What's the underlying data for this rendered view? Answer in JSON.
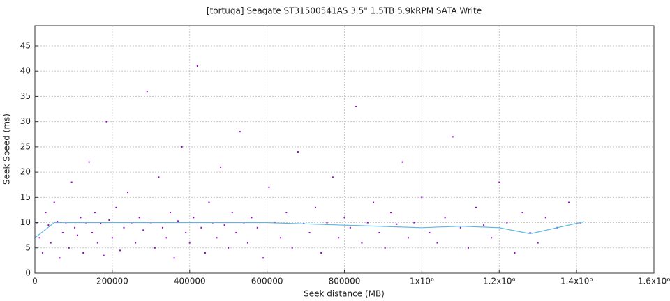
{
  "chart_data": {
    "type": "scatter",
    "title": "[tortuga] Seagate ST31500541AS 3.5\" 1.5TB 5.9kRPM SATA Write",
    "x_label": "Seek distance (MB)",
    "y_label": "Seek Speed (ms)",
    "xlim": [
      0,
      1600000
    ],
    "ylim": [
      0,
      49
    ],
    "xticks": [
      0,
      200000,
      400000,
      600000,
      800000,
      {
        "value": 1000000,
        "label": "1x10⁶"
      },
      {
        "value": 1200000,
        "label": "1.2x10⁶"
      },
      {
        "value": 1400000,
        "label": "1.4x10⁶"
      },
      {
        "value": 1600000,
        "label": "1.6x10⁶"
      }
    ],
    "yticks": [
      0,
      5,
      10,
      15,
      20,
      25,
      30,
      35,
      40,
      45
    ],
    "grid": true,
    "series": [
      {
        "type": "scatter",
        "color": "#9400d3",
        "x": [
          5000,
          12000,
          20000,
          28000,
          35000,
          41000,
          50000,
          58000,
          64000,
          72000,
          80000,
          88000,
          95000,
          103000,
          110000,
          118000,
          125000,
          132000,
          140000,
          148000,
          155000,
          162000,
          170000,
          178000,
          185000,
          192000,
          200000,
          210000,
          220000,
          230000,
          240000,
          250000,
          260000,
          270000,
          280000,
          290000,
          300000,
          310000,
          320000,
          330000,
          340000,
          350000,
          360000,
          370000,
          380000,
          390000,
          400000,
          410000,
          420000,
          430000,
          440000,
          450000,
          460000,
          470000,
          480000,
          490000,
          500000,
          510000,
          520000,
          530000,
          540000,
          550000,
          560000,
          575000,
          590000,
          605000,
          620000,
          635000,
          650000,
          665000,
          680000,
          695000,
          710000,
          725000,
          740000,
          755000,
          770000,
          785000,
          800000,
          815000,
          830000,
          845000,
          860000,
          875000,
          890000,
          905000,
          920000,
          935000,
          950000,
          965000,
          980000,
          1000000,
          1020000,
          1040000,
          1060000,
          1080000,
          1100000,
          1120000,
          1140000,
          1160000,
          1180000,
          1200000,
          1220000,
          1240000,
          1260000,
          1280000,
          1300000,
          1320000,
          1350000,
          1380000,
          1410000
        ],
        "values": [
          10,
          7,
          4,
          12,
          9.5,
          6,
          14,
          10.2,
          3,
          8,
          10,
          5,
          18,
          9,
          7.5,
          11,
          4,
          10,
          22,
          8,
          12,
          6,
          9.8,
          3.5,
          30,
          10.5,
          7,
          13,
          4.5,
          9,
          16,
          10,
          6,
          11,
          8.5,
          36,
          10,
          5,
          19,
          9,
          7,
          12,
          3,
          10.3,
          25,
          8,
          6,
          11,
          41,
          9,
          4,
          14,
          10,
          7,
          21,
          9.5,
          5,
          12,
          8,
          28,
          10,
          6,
          11,
          9,
          3,
          17,
          10,
          7,
          12,
          5,
          24,
          9.8,
          8,
          13,
          4,
          10,
          19,
          7,
          11,
          9,
          33,
          6,
          10,
          14,
          8,
          5,
          12,
          9.7,
          22,
          7,
          10,
          15,
          8,
          6,
          11,
          27,
          9,
          5,
          13,
          9.5,
          7,
          18,
          10,
          4,
          12,
          8,
          6,
          11,
          9,
          14,
          10
        ]
      },
      {
        "type": "line",
        "color": "#5bb6e6",
        "x": [
          0,
          50000,
          200000,
          400000,
          600000,
          800000,
          1000000,
          1100000,
          1200000,
          1280000,
          1350000,
          1420000
        ],
        "values": [
          7,
          10,
          10,
          10,
          10,
          9.5,
          9,
          9.3,
          9,
          7.8,
          9,
          10.2
        ]
      }
    ]
  }
}
